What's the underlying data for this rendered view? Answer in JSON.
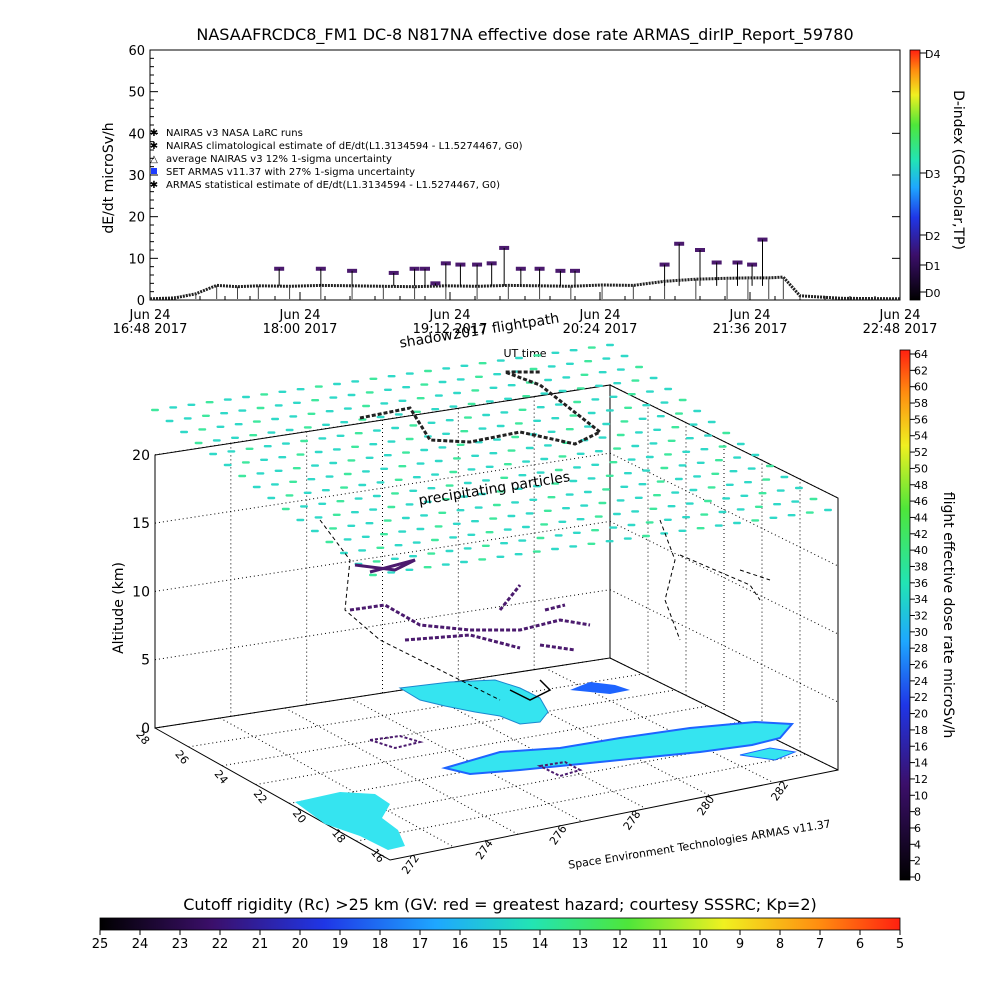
{
  "chart_data": [
    {
      "type": "line",
      "title": "NASAAFRCDC8_FM1 DC-8   N817NA effective dose rate ARMAS_dirIP_Report_59780",
      "ylabel": "dE/dt microSv/h",
      "xlabel": "UT time",
      "ylim": [
        0,
        60
      ],
      "yticks": [
        "0",
        "10",
        "20",
        "30",
        "40",
        "50",
        "60"
      ],
      "xticks": [
        {
          "day": "Jun 24",
          "time": "16:48 2017"
        },
        {
          "day": "Jun 24",
          "time": "18:00 2017"
        },
        {
          "day": "Jun 24",
          "time": "19:12 2017"
        },
        {
          "day": "Jun 24",
          "time": "20:24 2017"
        },
        {
          "day": "Jun 24",
          "time": "21:36 2017"
        },
        {
          "day": "Jun 24",
          "time": "22:48 2017"
        }
      ],
      "x_range_minutes_utc": [
        1008,
        1368
      ],
      "legend": [
        "NAIRAS v3 NASA LaRC runs",
        "NAIRAS climatological estimate of dE/dt(L1.3134594 - L1.5274467, G0)",
        "average NAIRAS v3 12% 1-sigma uncertainty",
        "SET ARMAS v11.37 with 27% 1-sigma uncertainty",
        "ARMAS statistical estimate of dE/dt(L1.3134594 - L1.5274467, G0)"
      ],
      "legend_position": "left",
      "grid": false,
      "right_axis": {
        "label": "D-index (GCR,solar,TP)",
        "ticks": [
          "D0",
          "D1",
          "D2",
          "D3",
          "D4"
        ]
      },
      "series": [
        {
          "x_minutes_utc": [
            1008,
            1020,
            1030,
            1040,
            1050,
            1060,
            1075,
            1090,
            1105,
            1120,
            1135,
            1150,
            1165,
            1180,
            1195,
            1210,
            1225,
            1240,
            1255,
            1270,
            1285,
            1295,
            1305,
            1312,
            1320,
            1340,
            1368
          ],
          "values": [
            0.3,
            0.5,
            1.5,
            3.5,
            3.2,
            3.4,
            3.3,
            3.5,
            3.4,
            3.3,
            3.2,
            3.4,
            3.3,
            3.5,
            3.4,
            3.3,
            3.6,
            3.5,
            4.5,
            5.0,
            5.2,
            5.3,
            5.3,
            5.5,
            1.0,
            0.4,
            0.3
          ]
        },
        {
          "x_minutes_utc": [
            1070,
            1090,
            1105,
            1125,
            1135,
            1140,
            1145,
            1150,
            1157,
            1165,
            1172,
            1178,
            1186,
            1195,
            1205,
            1212,
            1255,
            1262,
            1272,
            1280,
            1290,
            1297,
            1302
          ],
          "values": [
            7.5,
            7.5,
            7,
            6.5,
            7.5,
            7.5,
            4,
            8.8,
            8.5,
            8.5,
            8.8,
            12.5,
            7.5,
            7.5,
            7,
            7,
            8.5,
            13.5,
            12,
            9,
            9,
            8.5,
            14.5
          ]
        }
      ]
    },
    {
      "type": "scatter",
      "title": "shadow2017 flightpath",
      "subtitle": "precipitating particles",
      "zlabel": "Altitude (km)",
      "zticks": [
        "0",
        "5",
        "10",
        "15",
        "20"
      ],
      "lat_ticks": [
        "16",
        "18",
        "20",
        "22",
        "24",
        "26",
        "28"
      ],
      "lon_ticks": [
        "272",
        "274",
        "276",
        "278",
        "280",
        "282"
      ],
      "colorbar": {
        "label": "flight effective dose rate microSv/h",
        "min": 0,
        "max": 64,
        "ticks": [
          "0",
          "2",
          "4",
          "6",
          "8",
          "10",
          "12",
          "14",
          "16",
          "18",
          "20",
          "22",
          "24",
          "26",
          "28",
          "30",
          "32",
          "34",
          "36",
          "38",
          "40",
          "42",
          "44",
          "46",
          "48",
          "50",
          "52",
          "54",
          "56",
          "58",
          "60",
          "62",
          "64"
        ]
      },
      "credit": "Space Environment Technologies ARMAS v11.37"
    },
    {
      "type": "heatmap",
      "title": "Cutoff rigidity (Rc) >25 km (GV: red = greatest hazard; courtesy SSSRC; Kp=2)",
      "ticks": [
        "25",
        "24",
        "23",
        "22",
        "21",
        "20",
        "19",
        "18",
        "17",
        "16",
        "15",
        "14",
        "13",
        "12",
        "11",
        "10",
        "9",
        "8",
        "7",
        "6",
        "5"
      ]
    }
  ],
  "colors": {
    "dose_dark": "#4b1a6e",
    "particle_cyan": "#2fd9c8",
    "land_cyan": "#35e4f0",
    "ocean_blue": "#1e64ff"
  }
}
